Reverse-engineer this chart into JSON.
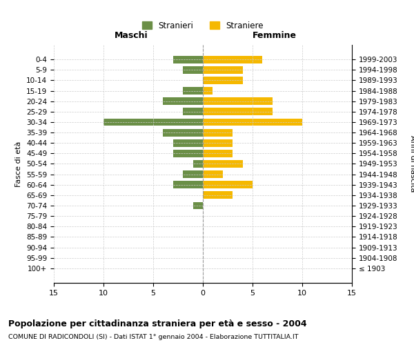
{
  "age_groups": [
    "0-4",
    "5-9",
    "10-14",
    "15-19",
    "20-24",
    "25-29",
    "30-34",
    "35-39",
    "40-44",
    "45-49",
    "50-54",
    "55-59",
    "60-64",
    "65-69",
    "70-74",
    "75-79",
    "80-84",
    "85-89",
    "90-94",
    "95-99",
    "100+"
  ],
  "birth_years": [
    "1999-2003",
    "1994-1998",
    "1989-1993",
    "1984-1988",
    "1979-1983",
    "1974-1978",
    "1969-1973",
    "1964-1968",
    "1959-1963",
    "1954-1958",
    "1949-1953",
    "1944-1948",
    "1939-1943",
    "1934-1938",
    "1929-1933",
    "1924-1928",
    "1919-1923",
    "1914-1918",
    "1909-1913",
    "1904-1908",
    "≤ 1903"
  ],
  "males": [
    3,
    2,
    0,
    2,
    4,
    2,
    10,
    4,
    3,
    3,
    1,
    2,
    3,
    0,
    1,
    0,
    0,
    0,
    0,
    0,
    0
  ],
  "females": [
    6,
    4,
    4,
    1,
    7,
    7,
    10,
    3,
    3,
    3,
    4,
    2,
    5,
    3,
    0,
    0,
    0,
    0,
    0,
    0,
    0
  ],
  "male_color": "#6b8f47",
  "female_color": "#f5b800",
  "xlim": 15,
  "title": "Popolazione per cittadinanza straniera per età e sesso - 2004",
  "subtitle": "COMUNE DI RADICONDOLI (SI) - Dati ISTAT 1° gennaio 2004 - Elaborazione TUTTITALIA.IT",
  "ylabel_left": "Fasce di età",
  "ylabel_right": "Anni di nascita",
  "xlabel_left": "Maschi",
  "xlabel_right": "Femmine",
  "legend_stranieri": "Stranieri",
  "legend_straniere": "Straniere",
  "background_color": "#ffffff",
  "grid_color": "#cccccc"
}
